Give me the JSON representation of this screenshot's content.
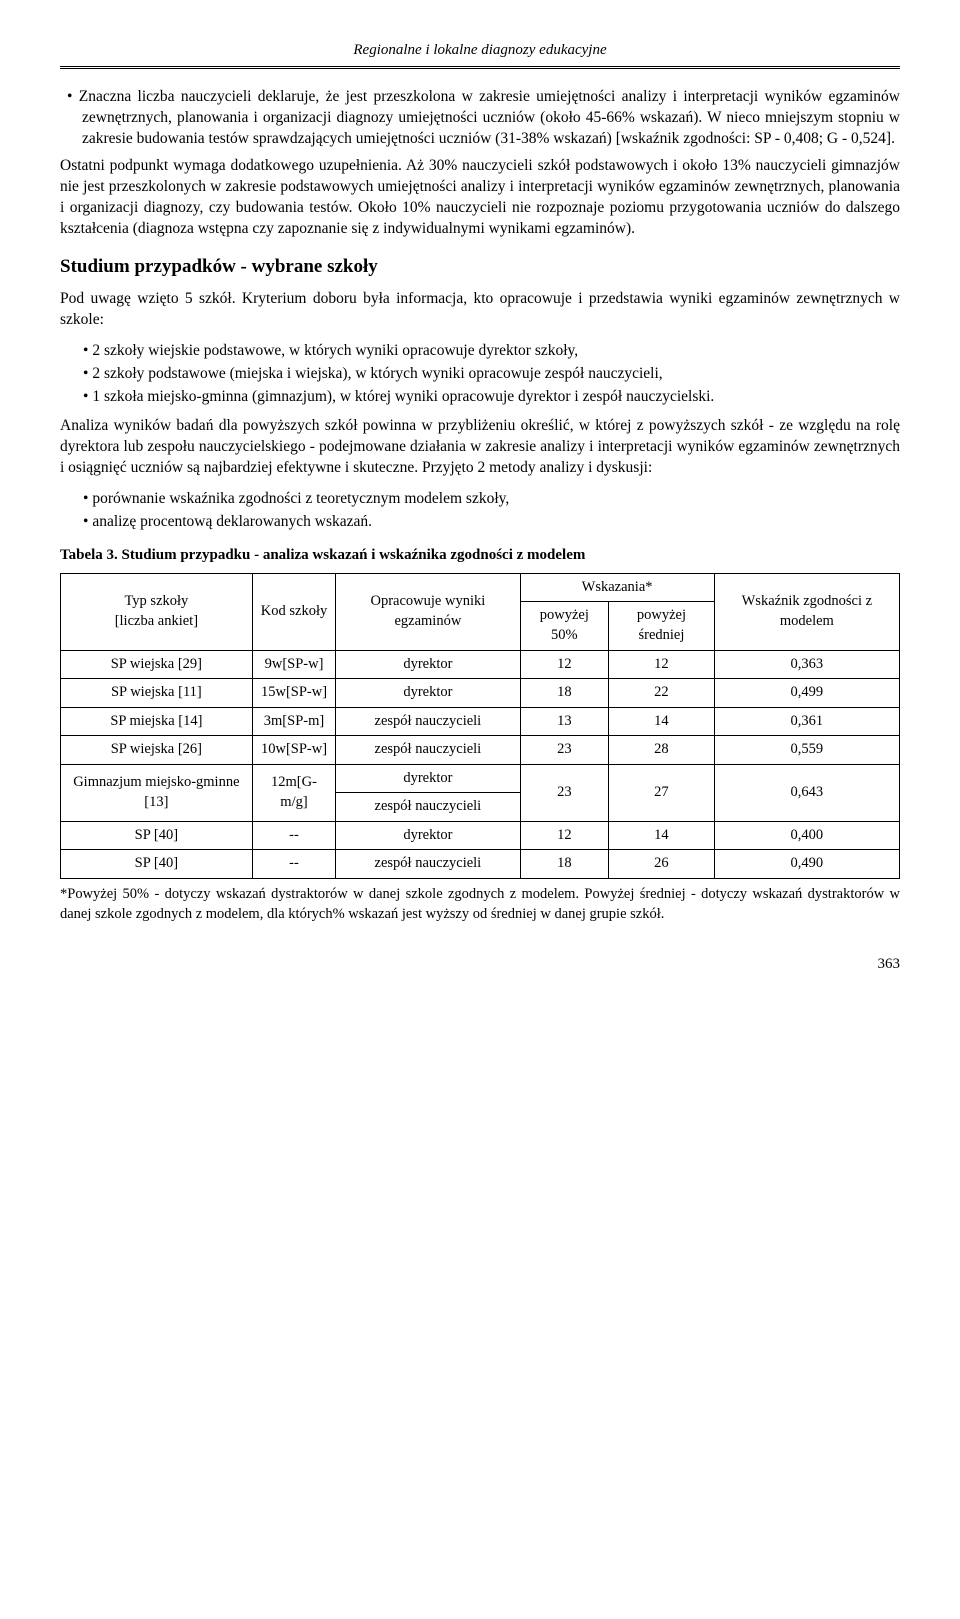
{
  "header": {
    "title": "Regionalne i lokalne diagnozy edukacyjne"
  },
  "bullet1": "Znaczna liczba nauczycieli deklaruje, że jest przeszkolona w zakresie umiejętności analizy i interpretacji wyników egzaminów zewnętrznych, planowania i organizacji diagnozy umiejętności uczniów (około 45-66% wskazań). W nieco mniejszym stopniu w zakresie budowania testów sprawdzających umiejętności uczniów (31-38% wskazań) [wskaźnik zgodności: SP - 0,408; G - 0,524].",
  "para1": "Ostatni podpunkt wymaga dodatkowego uzupełnienia. Aż 30% nauczycieli szkół podstawowych i około 13% nauczycieli gimnazjów nie jest przeszkolonych w zakresie podstawowych umiejętności analizy i interpretacji wyników egzaminów zewnętrznych, planowania i organizacji diagnozy, czy budowania testów. Około 10% nauczycieli nie rozpoznaje poziomu przygotowania uczniów do dalszego kształcenia (diagnoza wstępna czy zapoznanie się z indywidualnymi wynikami egzaminów).",
  "section_heading": "Studium przypadków - wybrane szkoły",
  "para2": "Pod uwagę wzięto 5 szkół. Kryterium doboru była informacja, kto opracowuje i przedstawia wyniki egzaminów zewnętrznych w szkole:",
  "list1": [
    "2 szkoły wiejskie podstawowe, w których wyniki opracowuje dyrektor szkoły,",
    "2 szkoły podstawowe (miejska i wiejska), w których wyniki opracowuje zespół nauczycieli,",
    "1 szkoła miejsko-gminna (gimnazjum), w której wyniki opracowuje dyrektor i zespół nauczycielski."
  ],
  "para3": "Analiza wyników badań dla powyższych szkół powinna w przybliżeniu określić, w której z powyższych szkół - ze względu na rolę dyrektora lub zespołu nauczycielskiego - podejmowane działania w zakresie analizy i interpretacji wyników egzaminów zewnętrznych i osiągnięć uczniów są najbardziej efektywne i skuteczne. Przyjęto 2 metody analizy i dyskusji:",
  "list2": [
    "porównanie wskaźnika zgodności z teoretycznym modelem szkoły,",
    "analizę procentową deklarowanych wskazań."
  ],
  "table_caption": "Tabela 3. Studium przypadku - analiza wskazań i wskaźnika zgodności z modelem",
  "table": {
    "headers": {
      "col1a": "Typ szkoły",
      "col1b": "[liczba ankiet]",
      "col2": "Kod szkoły",
      "col3": "Opracowuje wyniki egzaminów",
      "col4": "Wskazania*",
      "col4a": "powyżej 50%",
      "col4b": "powyżej średniej",
      "col5": "Wskaźnik zgodności z modelem"
    },
    "rows": [
      {
        "typ": "SP wiejska [29]",
        "kod": "9w[SP-w]",
        "opr": "dyrektor",
        "w50": "12",
        "wsr": "12",
        "wz": "0,363"
      },
      {
        "typ": "SP wiejska [11]",
        "kod": "15w[SP-w]",
        "opr": "dyrektor",
        "w50": "18",
        "wsr": "22",
        "wz": "0,499"
      },
      {
        "typ": "SP miejska [14]",
        "kod": "3m[SP-m]",
        "opr": "zespół nauczycieli",
        "w50": "13",
        "wsr": "14",
        "wz": "0,361"
      },
      {
        "typ": "SP wiejska [26]",
        "kod": "10w[SP-w]",
        "opr": "zespół nauczycieli",
        "w50": "23",
        "wsr": "28",
        "wz": "0,559"
      },
      {
        "typ": "Gimnazjum miejsko-gminne [13]",
        "kod": "12m[G-m/g]",
        "opr_a": "dyrektor",
        "opr_b": "zespół nauczycieli",
        "w50": "23",
        "wsr": "27",
        "wz": "0,643"
      },
      {
        "typ": "SP [40]",
        "kod": "--",
        "opr": "dyrektor",
        "w50": "12",
        "wsr": "14",
        "wz": "0,400"
      },
      {
        "typ": "SP [40]",
        "kod": "--",
        "opr": "zespół nauczycieli",
        "w50": "18",
        "wsr": "26",
        "wz": "0,490"
      }
    ]
  },
  "footnote": "*Powyżej 50% - dotyczy wskazań dystraktorów w danej szkole zgodnych z modelem. Powyżej średniej - dotyczy wskazań dystraktorów w danej szkole zgodnych z modelem, dla których% wskazań jest wyższy od średniej w danej grupie szkół.",
  "page_number": "363"
}
